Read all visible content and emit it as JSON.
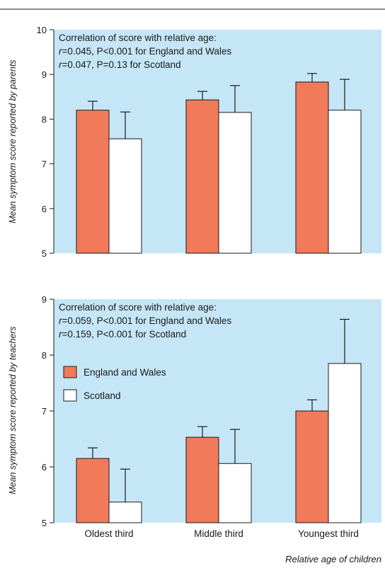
{
  "colors": {
    "plot_bg": "#c5e6f6",
    "england": "#f07a5a",
    "scotland": "#ffffff",
    "axis": "#1a1a1a"
  },
  "x_axis_label": "Relative age of children",
  "legend": [
    {
      "label": "England and Wales",
      "color": "#f07a5a"
    },
    {
      "label": "Scotland",
      "color": "#ffffff"
    }
  ],
  "chart_data": [
    {
      "type": "bar",
      "ylabel": "Mean symptom score reported by parents",
      "ylim": [
        5,
        10
      ],
      "yticks": [
        "5",
        "6",
        "7",
        "8",
        "9",
        "10"
      ],
      "categories": [
        "Oldest third",
        "Middle third",
        "Youngest third"
      ],
      "annotation": {
        "title": "Correlation of score with relative age:",
        "lines": [
          {
            "r": "r",
            "text": "=0.045, P<0.001 for England and Wales"
          },
          {
            "r": "r",
            "text": "=0.047, P=0.13 for Scotland"
          }
        ]
      },
      "series": [
        {
          "name": "England and Wales",
          "values": [
            8.2,
            8.43,
            8.83
          ],
          "error_upper": [
            8.4,
            8.62,
            9.02
          ]
        },
        {
          "name": "Scotland",
          "values": [
            7.56,
            8.15,
            8.2
          ],
          "error_upper": [
            8.16,
            8.75,
            8.89
          ]
        }
      ]
    },
    {
      "type": "bar",
      "ylabel": "Mean symptom score reported by teachers",
      "ylim": [
        5,
        9
      ],
      "yticks": [
        "5",
        "6",
        "7",
        "8",
        "9"
      ],
      "categories": [
        "Oldest third",
        "Middle third",
        "Youngest third"
      ],
      "annotation": {
        "title": "Correlation of score with relative age:",
        "lines": [
          {
            "r": "r",
            "text": "=0.059, P<0.001 for England and Wales"
          },
          {
            "r": "r",
            "text": "=0.159, P<0.001 for Scotland"
          }
        ]
      },
      "legend": "left",
      "series": [
        {
          "name": "England and Wales",
          "values": [
            6.15,
            6.53,
            7.0
          ],
          "error_upper": [
            6.34,
            6.72,
            7.2
          ]
        },
        {
          "name": "Scotland",
          "values": [
            5.37,
            6.06,
            7.85
          ],
          "error_upper": [
            5.96,
            6.67,
            8.64
          ]
        }
      ]
    }
  ]
}
